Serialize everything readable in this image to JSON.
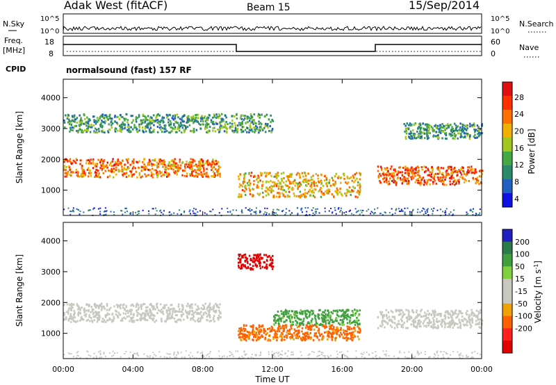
{
  "header": {
    "station": "Adak West (fitACF)",
    "beam": "Beam 15",
    "date": "15/Sep/2014"
  },
  "sky_panel": {
    "left_label": "N.Sky",
    "right_label": "N.Search",
    "ticks_left": [
      "10^5",
      "10^0"
    ],
    "ticks_right": [
      "10^5",
      "10^0"
    ]
  },
  "freq_panel": {
    "left_label_1": "Freq.",
    "left_label_2": "[MHz]",
    "right_label": "Nave",
    "ticks_left": [
      "18",
      "8"
    ],
    "ticks_right": [
      "60",
      "0"
    ]
  },
  "cpid": {
    "label": "CPID",
    "text": "normalsound (fast) 157 RF"
  },
  "colors": {
    "power_scale": [
      "#1010e0",
      "#2060c0",
      "#2a8a6a",
      "#44a844",
      "#a0c820",
      "#f0b000",
      "#ff7000",
      "#ff3000",
      "#e01010"
    ],
    "velocity_scale": [
      "#2020c0",
      "#2a7a4a",
      "#40a040",
      "#80d040",
      "#c8c8c0",
      "#c8c8c0",
      "#f0a000",
      "#ff6000",
      "#ff2020",
      "#e00000"
    ]
  },
  "chart_data": [
    {
      "type": "heatmap",
      "name": "power",
      "xlabel": "Time UT",
      "ylabel": "Slant Range [km]",
      "colorbar_label": "Power [dB]",
      "colorbar_ticks": [
        "28",
        "24",
        "20",
        "16",
        "12",
        "8",
        "4"
      ],
      "x_ticks": [
        "00:00",
        "04:00",
        "08:00",
        "12:00",
        "16:00",
        "20:00",
        "00:00"
      ],
      "y_ticks": [
        "4000",
        "3000",
        "2000",
        "1000"
      ],
      "xlim_hours": [
        0,
        24
      ],
      "ylim_km": [
        180,
        4600
      ],
      "features": [
        {
          "desc": "main band",
          "t_start": 0.0,
          "t_end": 9.0,
          "r_start": 1450,
          "r_end": 2050,
          "power": 24
        },
        {
          "desc": "upper band",
          "t_start": 0.0,
          "t_end": 12.0,
          "r_start": 2900,
          "r_end": 3500,
          "power": 10
        },
        {
          "desc": "mid band",
          "t_start": 10.0,
          "t_end": 17.0,
          "r_start": 800,
          "r_end": 1600,
          "power": 20
        },
        {
          "desc": "evening band",
          "t_start": 18.0,
          "t_end": 24.0,
          "r_start": 1200,
          "r_end": 1800,
          "power": 26
        },
        {
          "desc": "evening upper",
          "t_start": 19.5,
          "t_end": 24.0,
          "r_start": 2700,
          "r_end": 3200,
          "power": 10
        }
      ]
    },
    {
      "type": "heatmap",
      "name": "velocity",
      "xlabel": "Time UT",
      "ylabel": "Slant Range [km]",
      "colorbar_label": "Velocity [m s-1]",
      "colorbar_ticks": [
        "200",
        "100",
        "50",
        "15",
        "-15",
        "-50",
        "-100",
        "-200"
      ],
      "x_ticks": [
        "00:00",
        "04:00",
        "08:00",
        "12:00",
        "16:00",
        "20:00",
        "00:00"
      ],
      "y_ticks": [
        "4000",
        "3000",
        "2000",
        "1000"
      ],
      "xlim_hours": [
        0,
        24
      ],
      "ylim_km": [
        180,
        4600
      ],
      "features": [
        {
          "desc": "ground scatter",
          "t_start": 0.0,
          "t_end": 9.0,
          "r_start": 1400,
          "r_end": 2000,
          "velocity": 0
        },
        {
          "desc": "positive flow",
          "t_start": 12.0,
          "t_end": 17.0,
          "r_start": 1300,
          "r_end": 1800,
          "velocity": 40
        },
        {
          "desc": "negative flow",
          "t_start": 10.0,
          "t_end": 17.0,
          "r_start": 800,
          "r_end": 1300,
          "velocity": -60
        },
        {
          "desc": "strong negative",
          "t_start": 10.0,
          "t_end": 12.0,
          "r_start": 3100,
          "r_end": 3600,
          "velocity": -200
        },
        {
          "desc": "evening scatter",
          "t_start": 18.0,
          "t_end": 24.0,
          "r_start": 1200,
          "r_end": 1800,
          "velocity": 0
        }
      ]
    }
  ]
}
